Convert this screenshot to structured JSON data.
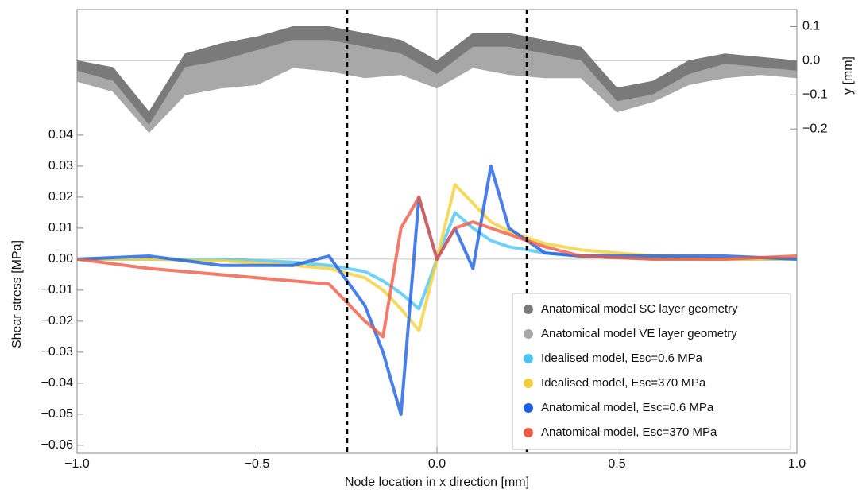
{
  "chart_data": {
    "type": "line",
    "xlabel": "Node location in x direction [mm]",
    "ylabel": "Shear stress [MPa]",
    "y2label": "y [mm]",
    "xlim": [
      -1,
      1
    ],
    "ylim": [
      -0.0626,
      0.0805
    ],
    "y2lim": [
      -1.15,
      0.15
    ],
    "xticks": [
      {
        "value": -1,
        "label": "−1.0"
      },
      {
        "value": -0.5,
        "label": "−0.5"
      },
      {
        "value": 0,
        "label": "0.0"
      },
      0.5,
      {
        "value": 1,
        "label": "1.0"
      }
    ],
    "yticks": [
      0.04,
      0.03,
      0.02,
      0.01,
      {
        "value": 0,
        "label": "0.00"
      },
      {
        "value": -0.01,
        "label": "−0.01"
      },
      {
        "value": -0.02,
        "label": "−0.02"
      },
      {
        "value": -0.03,
        "label": "−0.03"
      },
      {
        "value": -0.04,
        "label": "−0.04"
      },
      {
        "value": -0.05,
        "label": "−0.05"
      },
      {
        "value": -0.06,
        "label": "−0.06"
      }
    ],
    "y2ticks": [
      0.1,
      {
        "value": 0,
        "label": "0.0"
      },
      {
        "value": -0.1,
        "label": "−0.1"
      },
      {
        "value": -0.2,
        "label": "−0.2"
      }
    ],
    "zero_lines": true,
    "vlines": [
      -0.25,
      0.25
    ],
    "legend": "lower right",
    "series": [
      {
        "name": "Anatomical model SC layer geometry",
        "color": "#7a7a7a",
        "axis": "y2",
        "kind": "band",
        "x": [
          -1,
          -0.9,
          -0.8,
          -0.7,
          -0.6,
          -0.5,
          -0.4,
          -0.3,
          -0.2,
          -0.1,
          0,
          0.1,
          0.2,
          0.3,
          0.4,
          0.5,
          0.6,
          0.7,
          0.8,
          0.9,
          1
        ],
        "values": [
          0.0,
          -0.02,
          -0.15,
          0.02,
          0.05,
          0.07,
          0.1,
          0.1,
          0.08,
          0.06,
          0.0,
          0.08,
          0.08,
          0.06,
          0.04,
          -0.08,
          -0.06,
          0.0,
          0.02,
          0.01,
          0.0
        ],
        "lower": [
          -0.03,
          -0.06,
          -0.19,
          -0.02,
          0.0,
          0.03,
          0.06,
          0.06,
          0.04,
          0.02,
          -0.04,
          0.04,
          0.04,
          0.02,
          0.0,
          -0.12,
          -0.1,
          -0.04,
          -0.01,
          -0.02,
          -0.03
        ]
      },
      {
        "name": "Anatomical model VE layer geometry",
        "color": "#a8a8a8",
        "axis": "y2",
        "kind": "band",
        "x": [
          -1,
          -0.9,
          -0.8,
          -0.7,
          -0.6,
          -0.5,
          -0.4,
          -0.3,
          -0.2,
          -0.1,
          0,
          0.1,
          0.2,
          0.3,
          0.4,
          0.5,
          0.6,
          0.7,
          0.8,
          0.9,
          1
        ],
        "values": [
          -0.03,
          -0.06,
          -0.19,
          -0.02,
          0.0,
          0.03,
          0.06,
          0.06,
          0.04,
          0.02,
          -0.04,
          0.04,
          0.04,
          0.02,
          0.0,
          -0.12,
          -0.1,
          -0.04,
          -0.01,
          -0.02,
          -0.03
        ],
        "lower": [
          -0.06,
          -0.09,
          -0.21,
          -0.1,
          -0.08,
          -0.07,
          -0.02,
          -0.03,
          -0.05,
          -0.04,
          -0.08,
          -0.02,
          -0.04,
          -0.05,
          -0.05,
          -0.15,
          -0.12,
          -0.07,
          -0.05,
          -0.04,
          -0.05
        ]
      },
      {
        "name": "Idealised model, Esc=0.6 MPa",
        "color": "#4cc4f4",
        "x": [
          -1,
          -0.8,
          -0.6,
          -0.4,
          -0.3,
          -0.2,
          -0.15,
          -0.1,
          -0.05,
          0,
          0.05,
          0.1,
          0.15,
          0.2,
          0.3,
          0.4,
          0.6,
          0.8,
          1
        ],
        "values": [
          0,
          0,
          0,
          -0.001,
          -0.002,
          -0.004,
          -0.007,
          -0.011,
          -0.016,
          0,
          0.015,
          0.01,
          0.006,
          0.004,
          0.002,
          0.001,
          0,
          0,
          0
        ]
      },
      {
        "name": "Idealised model, Esc=370 MPa",
        "color": "#f2cf3a",
        "x": [
          -1,
          -0.8,
          -0.6,
          -0.4,
          -0.3,
          -0.2,
          -0.15,
          -0.1,
          -0.05,
          0,
          0.05,
          0.1,
          0.15,
          0.2,
          0.3,
          0.4,
          0.6,
          0.8,
          1
        ],
        "values": [
          0,
          0,
          -0.0005,
          -0.002,
          -0.003,
          -0.006,
          -0.01,
          -0.016,
          -0.023,
          0,
          0.024,
          0.018,
          0.012,
          0.009,
          0.005,
          0.003,
          0.001,
          0,
          0
        ]
      },
      {
        "name": "Anatomical model, Esc=0.6 MPa",
        "color": "#1c5fe4",
        "x": [
          -1,
          -0.8,
          -0.6,
          -0.4,
          -0.3,
          -0.2,
          -0.15,
          -0.1,
          -0.05,
          0,
          0.05,
          0.1,
          0.15,
          0.2,
          0.3,
          0.4,
          0.6,
          0.8,
          1
        ],
        "values": [
          0,
          0.001,
          -0.002,
          -0.002,
          0.001,
          -0.015,
          -0.03,
          -0.05,
          0.02,
          0,
          0.01,
          -0.003,
          0.03,
          0.01,
          0.002,
          0.001,
          0.001,
          0.001,
          0
        ]
      },
      {
        "name": "Anatomical model, Esc=370 MPa",
        "color": "#ef5a43",
        "x": [
          -1,
          -0.8,
          -0.6,
          -0.4,
          -0.3,
          -0.2,
          -0.15,
          -0.1,
          -0.05,
          0,
          0.05,
          0.1,
          0.15,
          0.2,
          0.3,
          0.4,
          0.6,
          0.8,
          1
        ],
        "values": [
          0,
          -0.003,
          -0.005,
          -0.007,
          -0.008,
          -0.02,
          -0.025,
          0.01,
          0.02,
          0,
          0.01,
          0.012,
          0.01,
          0.008,
          0.004,
          0.001,
          0,
          0,
          0.001
        ]
      }
    ]
  }
}
